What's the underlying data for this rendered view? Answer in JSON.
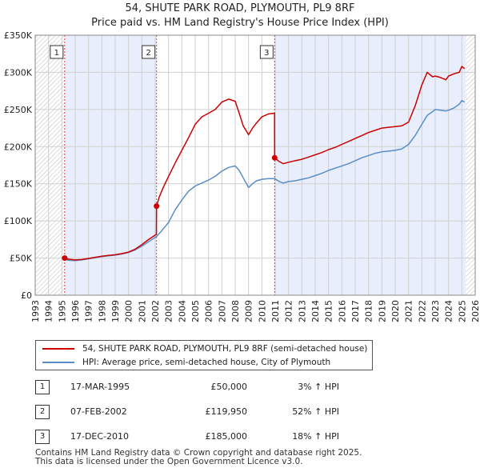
{
  "header": {
    "title": "54, SHUTE PARK ROAD, PLYMOUTH, PL9 8RF",
    "subtitle": "Price paid vs. HM Land Registry's House Price Index (HPI)"
  },
  "colors": {
    "property": "#cc0000",
    "hpi": "#5b8dc9",
    "shade": "#e8eefb",
    "grid": "#d0d0d0",
    "marker_line": "#dd4444"
  },
  "chart_data": {
    "type": "line",
    "title": "54, SHUTE PARK ROAD, PLYMOUTH, PL9 8RF",
    "subtitle": "Price paid vs. HM Land Registry's House Price Index (HPI)",
    "xlabel": "",
    "ylabel": "",
    "xlim": [
      1993,
      2026
    ],
    "ylim": [
      0,
      350000
    ],
    "x_ticks": [
      1993,
      1994,
      1995,
      1996,
      1997,
      1998,
      1999,
      2000,
      2001,
      2002,
      2003,
      2004,
      2005,
      2006,
      2007,
      2008,
      2009,
      2010,
      2011,
      2012,
      2013,
      2014,
      2015,
      2016,
      2017,
      2018,
      2019,
      2020,
      2021,
      2022,
      2023,
      2024,
      2025,
      2026
    ],
    "y_ticks": [
      {
        "value": 0,
        "label": "£0"
      },
      {
        "value": 50000,
        "label": "£50K"
      },
      {
        "value": 100000,
        "label": "£100K"
      },
      {
        "value": 150000,
        "label": "£150K"
      },
      {
        "value": 200000,
        "label": "£200K"
      },
      {
        "value": 250000,
        "label": "£250K"
      },
      {
        "value": 300000,
        "label": "£300K"
      },
      {
        "value": 350000,
        "label": "£350K"
      }
    ],
    "grid": true,
    "shaded_ranges": [
      [
        1995.21,
        2002.1
      ],
      [
        2010.96,
        2025.3
      ]
    ],
    "hatched_ranges": [
      [
        1993,
        1995.21
      ],
      [
        2025.3,
        2026
      ]
    ],
    "series": [
      {
        "name": "54, SHUTE PARK ROAD, PLYMOUTH, PL9 8RF (semi-detached house)",
        "color": "#cc0000",
        "x": [
          1995.21,
          1995.5,
          1996,
          1996.5,
          1997,
          1997.5,
          1998,
          1998.5,
          1999,
          1999.5,
          2000,
          2000.5,
          2001,
          2001.5,
          2002.09,
          2002.1,
          2002.3,
          2002.6,
          2003,
          2003.5,
          2004,
          2004.5,
          2005,
          2005.5,
          2006,
          2006.5,
          2007,
          2007.5,
          2008,
          2008.3,
          2008.6,
          2009,
          2009.3,
          2009.6,
          2010,
          2010.5,
          2010.95,
          2010.96,
          2011.3,
          2011.6,
          2012,
          2012.5,
          2013,
          2013.5,
          2014,
          2014.5,
          2015,
          2015.5,
          2016,
          2016.5,
          2017,
          2017.5,
          2018,
          2018.5,
          2019,
          2019.5,
          2020,
          2020.5,
          2021,
          2021.5,
          2022,
          2022.4,
          2022.8,
          2023,
          2023.4,
          2023.8,
          2024,
          2024.4,
          2024.8,
          2025,
          2025.2
        ],
        "y": [
          50000,
          48500,
          47500,
          48000,
          49500,
          51000,
          52500,
          53500,
          54500,
          56000,
          58000,
          62000,
          68000,
          75000,
          82000,
          119950,
          132000,
          145000,
          160000,
          178000,
          195000,
          212000,
          230000,
          240000,
          245000,
          250000,
          260000,
          264000,
          261000,
          245000,
          228000,
          216000,
          225000,
          232000,
          240000,
          244000,
          245000,
          185000,
          180000,
          177000,
          179000,
          181000,
          183000,
          186000,
          189000,
          192000,
          196000,
          199000,
          203000,
          207000,
          211000,
          215000,
          219000,
          222000,
          225000,
          226000,
          227000,
          228000,
          233000,
          255000,
          283000,
          300000,
          294000,
          295000,
          293000,
          290000,
          295000,
          298000,
          300000,
          308000,
          305000
        ]
      },
      {
        "name": "HPI: Average price, semi-detached house, City of Plymouth",
        "color": "#5b8dc9",
        "x": [
          1995.21,
          1995.5,
          1996,
          1996.5,
          1997,
          1997.5,
          1998,
          1998.5,
          1999,
          1999.5,
          2000,
          2000.5,
          2001,
          2001.5,
          2002.1,
          2002.5,
          2003,
          2003.5,
          2004,
          2004.5,
          2005,
          2005.5,
          2006,
          2006.5,
          2007,
          2007.5,
          2008,
          2008.3,
          2008.6,
          2009,
          2009.3,
          2009.6,
          2010,
          2010.5,
          2010.96,
          2011.3,
          2011.6,
          2012,
          2012.5,
          2013,
          2013.5,
          2014,
          2014.5,
          2015,
          2015.5,
          2016,
          2016.5,
          2017,
          2017.5,
          2018,
          2018.5,
          2019,
          2019.5,
          2020,
          2020.5,
          2021,
          2021.5,
          2022,
          2022.4,
          2022.8,
          2023,
          2023.4,
          2023.8,
          2024,
          2024.4,
          2024.8,
          2025,
          2025.2
        ],
        "y": [
          48500,
          47000,
          46500,
          47500,
          49000,
          50500,
          52000,
          53000,
          54000,
          55500,
          57500,
          61000,
          66000,
          72000,
          79000,
          87000,
          98000,
          115000,
          128000,
          140000,
          147000,
          151000,
          155000,
          160000,
          167000,
          172000,
          174000,
          168000,
          158000,
          145000,
          150000,
          154000,
          156000,
          157000,
          157000,
          153000,
          151000,
          153000,
          154000,
          156000,
          158000,
          161000,
          164000,
          168000,
          171000,
          174000,
          177000,
          181000,
          185000,
          188000,
          191000,
          193000,
          194000,
          195000,
          197000,
          203000,
          215000,
          230000,
          242000,
          247000,
          250000,
          249000,
          248000,
          249000,
          252000,
          257000,
          262000,
          260000
        ]
      }
    ],
    "sale_points": [
      {
        "label": "1",
        "x": 1995.21,
        "y": 50000
      },
      {
        "label": "2",
        "x": 2002.1,
        "y": 119950
      },
      {
        "label": "3",
        "x": 2010.96,
        "y": 185000
      }
    ]
  },
  "legend": {
    "property_label": "54, SHUTE PARK ROAD, PLYMOUTH, PL9 8RF (semi-detached house)",
    "hpi_label": "HPI: Average price, semi-detached house, City of Plymouth"
  },
  "transactions": [
    {
      "num": "1",
      "date": "17-MAR-1995",
      "price": "£50,000",
      "hpi": "3% ↑ HPI"
    },
    {
      "num": "2",
      "date": "07-FEB-2002",
      "price": "£119,950",
      "hpi": "52% ↑ HPI"
    },
    {
      "num": "3",
      "date": "17-DEC-2010",
      "price": "£185,000",
      "hpi": "18% ↑ HPI"
    }
  ],
  "footer": {
    "line1": "Contains HM Land Registry data © Crown copyright and database right 2025.",
    "line2": "This data is licensed under the Open Government Licence v3.0."
  }
}
